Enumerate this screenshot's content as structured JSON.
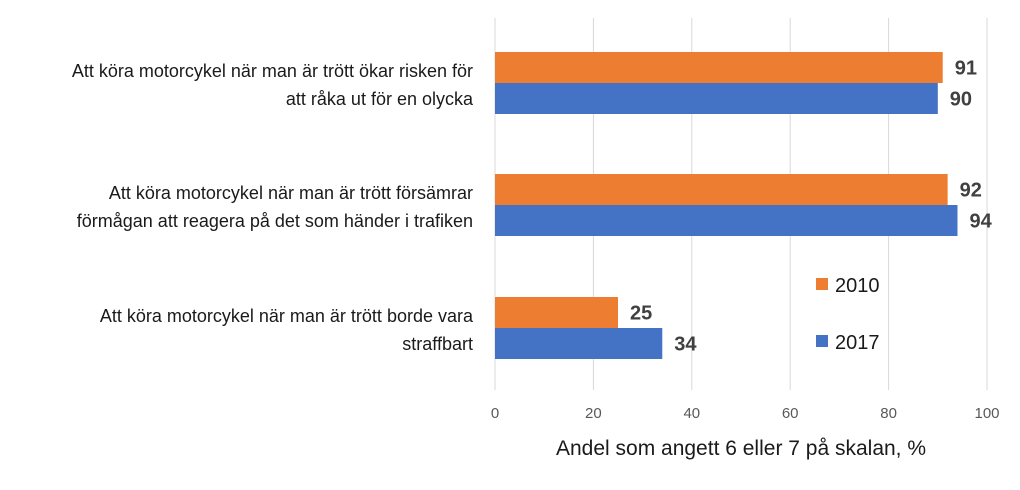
{
  "chart_data": {
    "type": "bar",
    "orientation": "horizontal",
    "categories": [
      [
        "Att köra motorcykel när man är trött ökar risken för",
        "att råka ut för en olycka"
      ],
      [
        "Att köra motorcykel när man är trött försämrar",
        "förmågan att reagera på det som händer i trafiken"
      ],
      [
        "Att köra motorcykel när man är trött borde vara",
        "straffbart"
      ]
    ],
    "series": [
      {
        "name": "2010",
        "color": "#ED7D31",
        "values": [
          91,
          92,
          25
        ]
      },
      {
        "name": "2017",
        "color": "#4472C4",
        "values": [
          90,
          94,
          34
        ]
      }
    ],
    "xlabel": "Andel som angett 6 eller 7 på skalan, %",
    "xlim": [
      0,
      100
    ],
    "xticks": [
      0,
      20,
      40,
      60,
      80,
      100
    ],
    "grid": true,
    "legend_position": "bottom-right"
  }
}
